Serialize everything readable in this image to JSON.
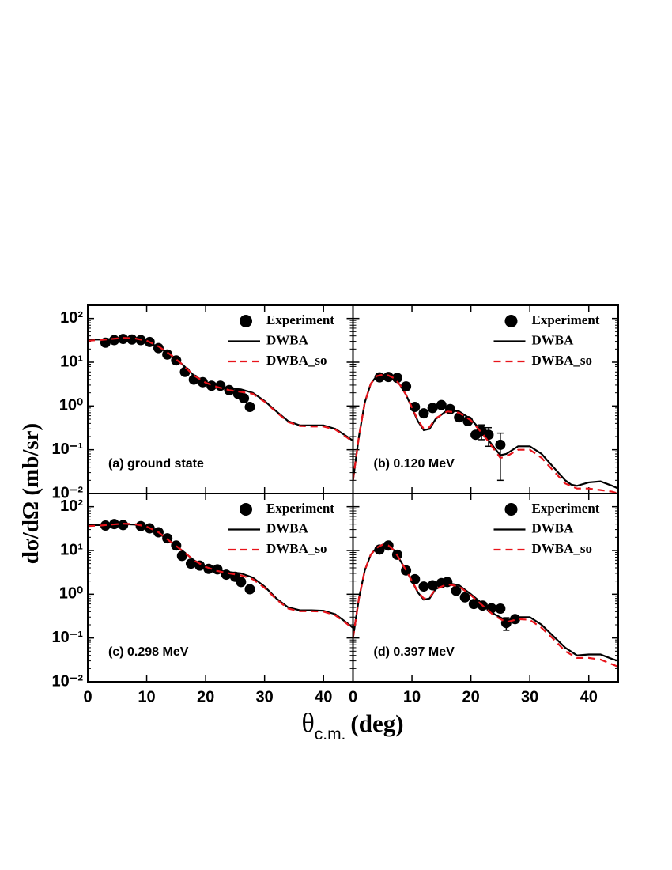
{
  "y_label": "dσ/dΩ (mb/sr)",
  "x_label": {
    "symbol": "θ",
    "subscript": "c.m.",
    "unit": "(deg)"
  },
  "chart_data": [
    {
      "type": "scatter_line",
      "annotation": "(a) ground state",
      "log_y": true,
      "xlim": [
        0,
        45
      ],
      "xticks": [
        0,
        10,
        20,
        30,
        40
      ],
      "ylim": [
        0.01,
        200
      ],
      "yticks": [
        {
          "value": 0.01,
          "label": "10⁻²"
        },
        {
          "value": 0.1,
          "label": "10⁻¹"
        },
        {
          "value": 1,
          "label": "10⁰"
        },
        {
          "value": 10,
          "label": "10¹"
        },
        {
          "value": 100,
          "label": "10²"
        }
      ],
      "series": [
        {
          "name": "Experiment",
          "color": "#000000",
          "style": "marker",
          "x": [
            3,
            4.5,
            6,
            7.5,
            9,
            10.5,
            12,
            13.5,
            15,
            16.5,
            18,
            19.5,
            21,
            22.5,
            24,
            25.5,
            26.5,
            27.5
          ],
          "values": [
            28,
            32,
            34,
            33,
            32,
            29,
            21,
            15,
            11,
            6,
            4,
            3.5,
            2.9,
            2.9,
            2.3,
            1.9,
            1.5,
            0.95
          ]
        },
        {
          "name": "DWBA",
          "color": "#000000",
          "style": "solid",
          "x": [
            0,
            2,
            4,
            6,
            8,
            10,
            12,
            14,
            16,
            18,
            20,
            22,
            24,
            26,
            28,
            30,
            32,
            34,
            36,
            38,
            40,
            42,
            44,
            45
          ],
          "values": [
            33,
            33,
            34,
            35,
            34,
            30,
            22,
            15,
            9,
            5,
            3.5,
            2.8,
            2.5,
            2.4,
            2.0,
            1.3,
            0.75,
            0.45,
            0.36,
            0.36,
            0.36,
            0.3,
            0.2,
            0.16
          ]
        },
        {
          "name": "DWBA_so",
          "color": "#e8141b",
          "style": "dashed",
          "x": [
            0,
            2,
            4,
            6,
            8,
            10,
            12,
            14,
            16,
            18,
            20,
            22,
            24,
            26,
            28,
            30,
            32,
            34,
            36,
            38,
            40,
            42,
            44,
            45
          ],
          "values": [
            31,
            32,
            34,
            36,
            35,
            31,
            23,
            15,
            9,
            5,
            3.4,
            2.7,
            2.3,
            2.1,
            1.9,
            1.25,
            0.72,
            0.43,
            0.35,
            0.34,
            0.34,
            0.29,
            0.19,
            0.15
          ]
        }
      ]
    },
    {
      "type": "scatter_line",
      "annotation": "(b) 0.120 MeV",
      "log_y": true,
      "xlim": [
        0,
        45
      ],
      "xticks": [
        0,
        10,
        20,
        30,
        40
      ],
      "ylim": [
        0.01,
        200
      ],
      "yticks": [
        0.01,
        0.1,
        1,
        10,
        100
      ],
      "series": [
        {
          "name": "Experiment",
          "color": "#000000",
          "style": "marker",
          "x": [
            4.5,
            6,
            7.5,
            9,
            10.5,
            12,
            13.5,
            15,
            16.5,
            18,
            19.5,
            20.8,
            21.8,
            23,
            25
          ],
          "values": [
            4.5,
            4.6,
            4.4,
            2.8,
            0.95,
            0.68,
            0.9,
            1.05,
            0.85,
            0.55,
            0.45,
            0.22,
            0.27,
            0.22,
            0.13
          ],
          "errors": [
            null,
            null,
            null,
            null,
            null,
            null,
            null,
            null,
            null,
            null,
            null,
            null,
            0.1,
            0.1,
            0.11
          ]
        },
        {
          "name": "DWBA",
          "color": "#000000",
          "style": "solid",
          "x": [
            0,
            1,
            2,
            3,
            4,
            5,
            6,
            7,
            8,
            9,
            10,
            11,
            12,
            13,
            14,
            16,
            18,
            20,
            22,
            24,
            25,
            26,
            28,
            30,
            32,
            34,
            36,
            37,
            38,
            40,
            42,
            44,
            45
          ],
          "values": [
            0.02,
            0.2,
            1.2,
            3.2,
            4.8,
            5.2,
            5.0,
            4.3,
            3.0,
            1.8,
            0.9,
            0.45,
            0.28,
            0.3,
            0.5,
            0.8,
            0.75,
            0.5,
            0.25,
            0.11,
            0.075,
            0.08,
            0.12,
            0.12,
            0.08,
            0.04,
            0.02,
            0.016,
            0.015,
            0.018,
            0.019,
            0.015,
            0.013
          ]
        },
        {
          "name": "DWBA_so",
          "color": "#e8141b",
          "style": "dashed",
          "x": [
            0,
            1,
            2,
            3,
            4,
            5,
            6,
            7,
            8,
            9,
            10,
            11,
            12,
            13,
            14,
            16,
            18,
            20,
            22,
            24,
            25,
            26,
            28,
            30,
            32,
            34,
            36,
            38,
            40,
            42,
            44,
            45
          ],
          "values": [
            0.02,
            0.2,
            1.2,
            3.2,
            4.8,
            5.2,
            5.0,
            4.3,
            3.0,
            1.8,
            0.92,
            0.48,
            0.3,
            0.33,
            0.52,
            0.75,
            0.7,
            0.47,
            0.23,
            0.1,
            0.065,
            0.07,
            0.1,
            0.1,
            0.065,
            0.033,
            0.017,
            0.013,
            0.013,
            0.012,
            0.011,
            0.01
          ]
        }
      ]
    },
    {
      "type": "scatter_line",
      "annotation": "(c) 0.298 MeV",
      "log_y": true,
      "xlim": [
        0,
        45
      ],
      "xticks": [
        0,
        10,
        20,
        30,
        40
      ],
      "ylim": [
        0.01,
        200
      ],
      "yticks": [
        {
          "value": 0.01,
          "label": "10⁻²"
        },
        {
          "value": 0.1,
          "label": "10⁻¹"
        },
        {
          "value": 1,
          "label": "10⁰"
        },
        {
          "value": 10,
          "label": "10¹"
        },
        {
          "value": 100,
          "label": "10²"
        }
      ],
      "series": [
        {
          "name": "Experiment",
          "color": "#000000",
          "style": "marker",
          "x": [
            3,
            4.5,
            6,
            9,
            10.5,
            12,
            13.5,
            15,
            16,
            17.5,
            19,
            20.5,
            22,
            23.5,
            25,
            26,
            27.5
          ],
          "values": [
            37,
            40,
            38,
            36,
            32,
            26,
            19,
            13,
            7.5,
            5,
            4.5,
            3.8,
            3.7,
            2.8,
            2.5,
            1.9,
            1.3
          ]
        },
        {
          "name": "DWBA",
          "color": "#000000",
          "style": "solid",
          "x": [
            0,
            2,
            4,
            6,
            8,
            10,
            12,
            14,
            16,
            18,
            20,
            22,
            24,
            26,
            28,
            30,
            32,
            34,
            36,
            38,
            40,
            42,
            44,
            45
          ],
          "values": [
            38,
            38,
            39,
            40,
            39,
            34,
            25,
            16,
            10,
            6,
            4.3,
            3.5,
            3.2,
            3.0,
            2.4,
            1.5,
            0.8,
            0.5,
            0.43,
            0.43,
            0.42,
            0.35,
            0.22,
            0.17
          ]
        },
        {
          "name": "DWBA_so",
          "color": "#e8141b",
          "style": "dashed",
          "x": [
            0,
            2,
            4,
            6,
            8,
            10,
            12,
            14,
            16,
            18,
            20,
            22,
            24,
            26,
            28,
            30,
            32,
            34,
            36,
            38,
            40,
            42,
            44,
            45
          ],
          "values": [
            36,
            37,
            39,
            41,
            40,
            35,
            26,
            16,
            10,
            6,
            4.2,
            3.4,
            3.0,
            2.7,
            2.2,
            1.4,
            0.76,
            0.47,
            0.41,
            0.41,
            0.4,
            0.33,
            0.21,
            0.16
          ]
        }
      ]
    },
    {
      "type": "scatter_line",
      "annotation": "(d) 0.397 MeV",
      "log_y": true,
      "xlim": [
        0,
        45
      ],
      "xticks": [
        0,
        10,
        20,
        30,
        40
      ],
      "ylim": [
        0.01,
        200
      ],
      "yticks": [
        0.01,
        0.1,
        1,
        10,
        100
      ],
      "series": [
        {
          "name": "Experiment",
          "color": "#000000",
          "style": "marker",
          "x": [
            4.5,
            6,
            7.5,
            9,
            10.5,
            12,
            13.5,
            15,
            16,
            17.5,
            19,
            20.5,
            22,
            23.5,
            25,
            26,
            27.5
          ],
          "values": [
            10.5,
            13,
            8,
            3.5,
            2.2,
            1.5,
            1.6,
            1.8,
            1.9,
            1.2,
            0.85,
            0.6,
            0.55,
            0.48,
            0.47,
            0.22,
            0.27
          ],
          "errors": [
            null,
            null,
            null,
            null,
            null,
            null,
            null,
            null,
            null,
            null,
            null,
            null,
            null,
            null,
            null,
            0.07,
            null
          ]
        },
        {
          "name": "DWBA",
          "color": "#000000",
          "style": "solid",
          "x": [
            0,
            1,
            2,
            3,
            4,
            5,
            6,
            7,
            8,
            9,
            10,
            11,
            12,
            13,
            14,
            16,
            18,
            20,
            22,
            24,
            26,
            28,
            30,
            32,
            34,
            36,
            38,
            40,
            42,
            44,
            45
          ],
          "values": [
            0.1,
            0.8,
            3.5,
            8,
            11.5,
            13.5,
            13,
            10,
            6,
            3.5,
            2,
            1.1,
            0.75,
            0.8,
            1.3,
            1.8,
            1.6,
            1.0,
            0.6,
            0.35,
            0.25,
            0.3,
            0.3,
            0.2,
            0.11,
            0.06,
            0.04,
            0.042,
            0.042,
            0.033,
            0.03
          ]
        },
        {
          "name": "DWBA_so",
          "color": "#e8141b",
          "style": "dashed",
          "x": [
            0,
            1,
            2,
            3,
            4,
            5,
            6,
            7,
            8,
            9,
            10,
            11,
            12,
            13,
            14,
            16,
            18,
            20,
            22,
            24,
            26,
            28,
            30,
            32,
            34,
            36,
            38,
            40,
            42,
            44,
            45
          ],
          "values": [
            0.1,
            0.8,
            3.5,
            8,
            11.5,
            13.5,
            13,
            10,
            6,
            3.5,
            2,
            1.15,
            0.8,
            0.85,
            1.3,
            1.7,
            1.5,
            0.95,
            0.55,
            0.32,
            0.23,
            0.27,
            0.26,
            0.17,
            0.095,
            0.05,
            0.035,
            0.035,
            0.032,
            0.025,
            0.022
          ]
        }
      ]
    }
  ]
}
